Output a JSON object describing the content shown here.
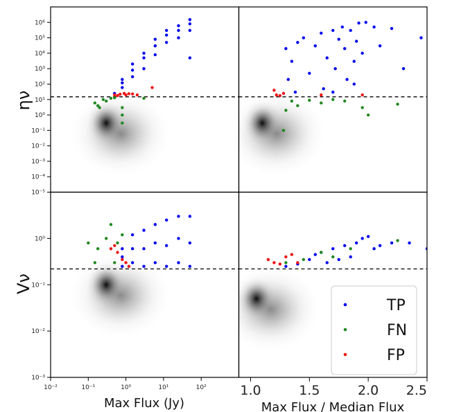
{
  "chart_data": [
    {
      "panel": "top-left",
      "type": "scatter",
      "ylabel": "ην",
      "xscale": "log",
      "yscale": "log",
      "xlim": [
        0.01,
        1000
      ],
      "ylim": [
        1e-05,
        10000000
      ],
      "threshold_y": 15,
      "density": [
        {
          "x": 0.3,
          "y": 0.3
        }
      ],
      "series": [
        {
          "name": "TP",
          "color": "#0000ee",
          "points": [
            [
              0.8,
              60
            ],
            [
              0.8,
              120
            ],
            [
              0.8,
              200
            ],
            [
              1.5,
              300
            ],
            [
              1.5,
              800
            ],
            [
              1.5,
              2000
            ],
            [
              3,
              1000
            ],
            [
              3,
              5000
            ],
            [
              3,
              10000
            ],
            [
              6,
              8000
            ],
            [
              6,
              30000
            ],
            [
              6,
              80000
            ],
            [
              12,
              50000
            ],
            [
              12,
              150000
            ],
            [
              12,
              300000
            ],
            [
              25,
              100000
            ],
            [
              25,
              300000
            ],
            [
              25,
              600000
            ],
            [
              50,
              300000
            ],
            [
              50,
              800000
            ],
            [
              50,
              1500000
            ],
            [
              50,
              5000
            ],
            [
              0.5,
              25
            ]
          ]
        },
        {
          "name": "FN",
          "color": "#228822",
          "points": [
            [
              0.15,
              6
            ],
            [
              0.18,
              4
            ],
            [
              0.2,
              3
            ],
            [
              0.25,
              10
            ],
            [
              0.3,
              8
            ],
            [
              0.4,
              12
            ],
            [
              0.5,
              13
            ],
            [
              0.8,
              3
            ],
            [
              0.8,
              1
            ],
            [
              0.8,
              0.3
            ],
            [
              3,
              12
            ]
          ]
        },
        {
          "name": "FP",
          "color": "#ee1111",
          "points": [
            [
              0.5,
              20
            ],
            [
              0.6,
              18
            ],
            [
              0.7,
              22
            ],
            [
              0.9,
              25
            ],
            [
              1.0,
              20
            ],
            [
              1.2,
              24
            ],
            [
              1.5,
              23
            ],
            [
              2,
              20
            ],
            [
              5,
              60
            ]
          ]
        }
      ]
    },
    {
      "panel": "top-right",
      "type": "scatter",
      "xscale": "linear",
      "yscale": "log",
      "xlim": [
        0.9,
        2.5
      ],
      "ylim": [
        1e-05,
        10000000
      ],
      "threshold_y": 15,
      "density": [
        {
          "x": 1.1,
          "y": 0.3
        }
      ],
      "series": [
        {
          "name": "TP",
          "color": "#0000ee",
          "points": [
            [
              1.3,
              20000
            ],
            [
              1.32,
              200
            ],
            [
              1.35,
              3000
            ],
            [
              1.4,
              50000
            ],
            [
              1.45,
              100000
            ],
            [
              1.5,
              500
            ],
            [
              1.55,
              30000
            ],
            [
              1.6,
              200000
            ],
            [
              1.62,
              50
            ],
            [
              1.65,
              5000
            ],
            [
              1.7,
              300000
            ],
            [
              1.72,
              1000
            ],
            [
              1.75,
              80000
            ],
            [
              1.78,
              500000
            ],
            [
              1.8,
              20000
            ],
            [
              1.82,
              200
            ],
            [
              1.85,
              300000
            ],
            [
              1.88,
              3000
            ],
            [
              1.9,
              60000
            ],
            [
              1.92,
              900000
            ],
            [
              1.95,
              10000
            ],
            [
              1.98,
              1000000
            ],
            [
              2.05,
              500000
            ],
            [
              2.1,
              30000
            ],
            [
              2.2,
              400000
            ],
            [
              2.3,
              1000
            ],
            [
              2.45,
              100000
            ],
            [
              1.38,
              30
            ],
            [
              1.7,
              30
            ],
            [
              1.88,
              100
            ]
          ]
        },
        {
          "name": "FN",
          "color": "#228822",
          "points": [
            [
              1.28,
              0.1
            ],
            [
              1.3,
              2
            ],
            [
              1.35,
              8
            ],
            [
              1.4,
              4
            ],
            [
              1.5,
              9
            ],
            [
              1.6,
              6
            ],
            [
              1.7,
              10
            ],
            [
              1.8,
              8
            ],
            [
              1.95,
              3
            ],
            [
              2.0,
              1
            ],
            [
              2.25,
              5
            ]
          ]
        },
        {
          "name": "FP",
          "color": "#ee1111",
          "points": [
            [
              1.2,
              40
            ],
            [
              1.22,
              20
            ],
            [
              1.25,
              18
            ],
            [
              1.28,
              25
            ],
            [
              1.6,
              20
            ],
            [
              1.95,
              20
            ]
          ]
        }
      ]
    },
    {
      "panel": "bottom-left",
      "type": "scatter",
      "xlabel": "Max Flux (Jy)",
      "ylabel": "Vν",
      "xscale": "log",
      "yscale": "log",
      "xlim": [
        0.01,
        1000
      ],
      "ylim": [
        0.001,
        10
      ],
      "threshold_y": 0.22,
      "density": [
        {
          "x": 0.3,
          "y": 0.1
        }
      ],
      "series": [
        {
          "name": "TP",
          "color": "#0000ee",
          "points": [
            [
              0.8,
              0.25
            ],
            [
              0.8,
              0.4
            ],
            [
              0.8,
              0.6
            ],
            [
              1.5,
              0.3
            ],
            [
              1.5,
              0.6
            ],
            [
              1.5,
              1.2
            ],
            [
              3,
              0.25
            ],
            [
              3,
              0.6
            ],
            [
              3,
              1.5
            ],
            [
              6,
              0.3
            ],
            [
              6,
              0.8
            ],
            [
              6,
              2
            ],
            [
              12,
              0.25
            ],
            [
              12,
              0.7
            ],
            [
              12,
              2.5
            ],
            [
              25,
              0.3
            ],
            [
              25,
              1
            ],
            [
              25,
              3
            ],
            [
              50,
              0.25
            ],
            [
              50,
              0.8
            ],
            [
              50,
              3
            ]
          ]
        },
        {
          "name": "FN",
          "color": "#228822",
          "points": [
            [
              0.1,
              0.8
            ],
            [
              0.15,
              0.3
            ],
            [
              0.18,
              0.6
            ],
            [
              0.3,
              1
            ],
            [
              0.4,
              2
            ],
            [
              0.6,
              0.8
            ],
            [
              0.8,
              1.2
            ],
            [
              0.5,
              0.3
            ]
          ]
        },
        {
          "name": "FP",
          "color": "#ee1111",
          "points": [
            [
              0.4,
              0.6
            ],
            [
              0.5,
              0.7
            ],
            [
              0.6,
              0.5
            ],
            [
              0.8,
              0.35
            ],
            [
              1.0,
              0.3
            ],
            [
              1.2,
              0.25
            ]
          ]
        }
      ]
    },
    {
      "panel": "bottom-right",
      "type": "scatter",
      "xlabel": "Max Flux / Median Flux",
      "xscale": "linear",
      "yscale": "log",
      "xlim": [
        0.9,
        2.5
      ],
      "ylim": [
        0.001,
        10
      ],
      "threshold_y": 0.22,
      "density": [
        {
          "x": 1.05,
          "y": 0.05
        }
      ],
      "series": [
        {
          "name": "TP",
          "color": "#0000ee",
          "points": [
            [
              1.3,
              0.25
            ],
            [
              1.4,
              0.28
            ],
            [
              1.5,
              0.35
            ],
            [
              1.55,
              0.45
            ],
            [
              1.6,
              0.5
            ],
            [
              1.65,
              0.3
            ],
            [
              1.7,
              0.6
            ],
            [
              1.75,
              0.35
            ],
            [
              1.8,
              0.7
            ],
            [
              1.85,
              0.4
            ],
            [
              1.9,
              0.8
            ],
            [
              1.95,
              1
            ],
            [
              2.0,
              1.1
            ],
            [
              2.05,
              0.6
            ],
            [
              2.1,
              0.7
            ],
            [
              2.2,
              0.8
            ],
            [
              2.35,
              0.8
            ],
            [
              2.5,
              0.6
            ]
          ]
        },
        {
          "name": "FN",
          "color": "#228822",
          "points": [
            [
              1.3,
              0.3
            ],
            [
              1.45,
              0.35
            ],
            [
              1.6,
              0.5
            ],
            [
              1.7,
              0.4
            ],
            [
              1.85,
              0.6
            ],
            [
              2.25,
              0.9
            ]
          ]
        },
        {
          "name": "FP",
          "color": "#ee1111",
          "points": [
            [
              1.15,
              0.35
            ],
            [
              1.2,
              0.3
            ],
            [
              1.25,
              0.28
            ],
            [
              1.3,
              0.4
            ],
            [
              1.35,
              0.45
            ],
            [
              1.4,
              0.3
            ]
          ]
        }
      ]
    }
  ],
  "axes": {
    "x_log_ticks": [
      "10⁻²",
      "10⁻¹",
      "10⁰",
      "10¹",
      "10²"
    ],
    "x_lin_ticks": [
      "1.0",
      "1.5",
      "2.0",
      "2.5"
    ],
    "y_top_ticks": [
      "10⁶",
      "10⁵",
      "10⁴",
      "10³",
      "10²",
      "10¹",
      "10⁰",
      "10⁻¹",
      "10⁻²",
      "10⁻³",
      "10⁻⁴",
      "10⁻⁵"
    ],
    "y_bottom_ticks": [
      "10⁰",
      "10⁻¹",
      "10⁻²",
      "10⁻³"
    ],
    "y_top_title": "ην",
    "y_bottom_title": "Vν",
    "x_left_title": "Max Flux (Jy)",
    "x_right_title": "Max Flux / Median Flux"
  },
  "legend": {
    "placement": "lower-right",
    "entries": [
      {
        "label": "TP",
        "color": "#0000ee"
      },
      {
        "label": "FN",
        "color": "#228822"
      },
      {
        "label": "FP",
        "color": "#ee1111"
      }
    ]
  }
}
